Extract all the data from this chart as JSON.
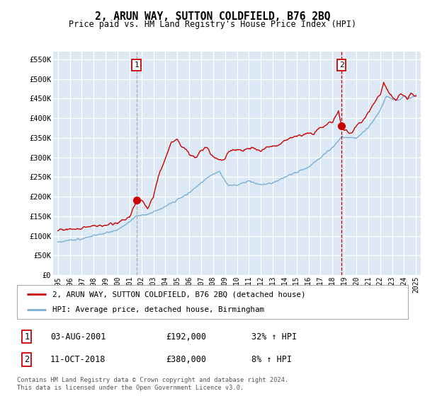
{
  "title": "2, ARUN WAY, SUTTON COLDFIELD, B76 2BQ",
  "subtitle": "Price paid vs. HM Land Registry's House Price Index (HPI)",
  "bg_color": "#dce9f5",
  "red_color": "#cc0000",
  "blue_color": "#7bafd4",
  "ylim": [
    0,
    570000
  ],
  "yticks": [
    0,
    50000,
    100000,
    150000,
    200000,
    250000,
    300000,
    350000,
    400000,
    450000,
    500000,
    550000
  ],
  "ytick_labels": [
    "£0",
    "£50K",
    "£100K",
    "£150K",
    "£200K",
    "£250K",
    "£300K",
    "£350K",
    "£400K",
    "£450K",
    "£500K",
    "£550K"
  ],
  "xtick_years": [
    1995,
    1996,
    1997,
    1998,
    1999,
    2000,
    2001,
    2002,
    2003,
    2004,
    2005,
    2006,
    2007,
    2008,
    2009,
    2010,
    2011,
    2012,
    2013,
    2014,
    2015,
    2016,
    2017,
    2018,
    2019,
    2020,
    2021,
    2022,
    2023,
    2024,
    2025
  ],
  "xlim_left": 1994.6,
  "xlim_right": 2025.4,
  "sale1_x": 2001.58,
  "sale1_y": 192000,
  "sale1_label": "1",
  "sale2_x": 2018.77,
  "sale2_y": 380000,
  "sale2_label": "2",
  "legend_red": "2, ARUN WAY, SUTTON COLDFIELD, B76 2BQ (detached house)",
  "legend_blue": "HPI: Average price, detached house, Birmingham",
  "note1_label": "1",
  "note1_date": "03-AUG-2001",
  "note1_price": "£192,000",
  "note1_hpi": "32% ↑ HPI",
  "note2_label": "2",
  "note2_date": "11-OCT-2018",
  "note2_price": "£380,000",
  "note2_hpi": "8% ↑ HPI",
  "footer": "Contains HM Land Registry data © Crown copyright and database right 2024.\nThis data is licensed under the Open Government Licence v3.0."
}
